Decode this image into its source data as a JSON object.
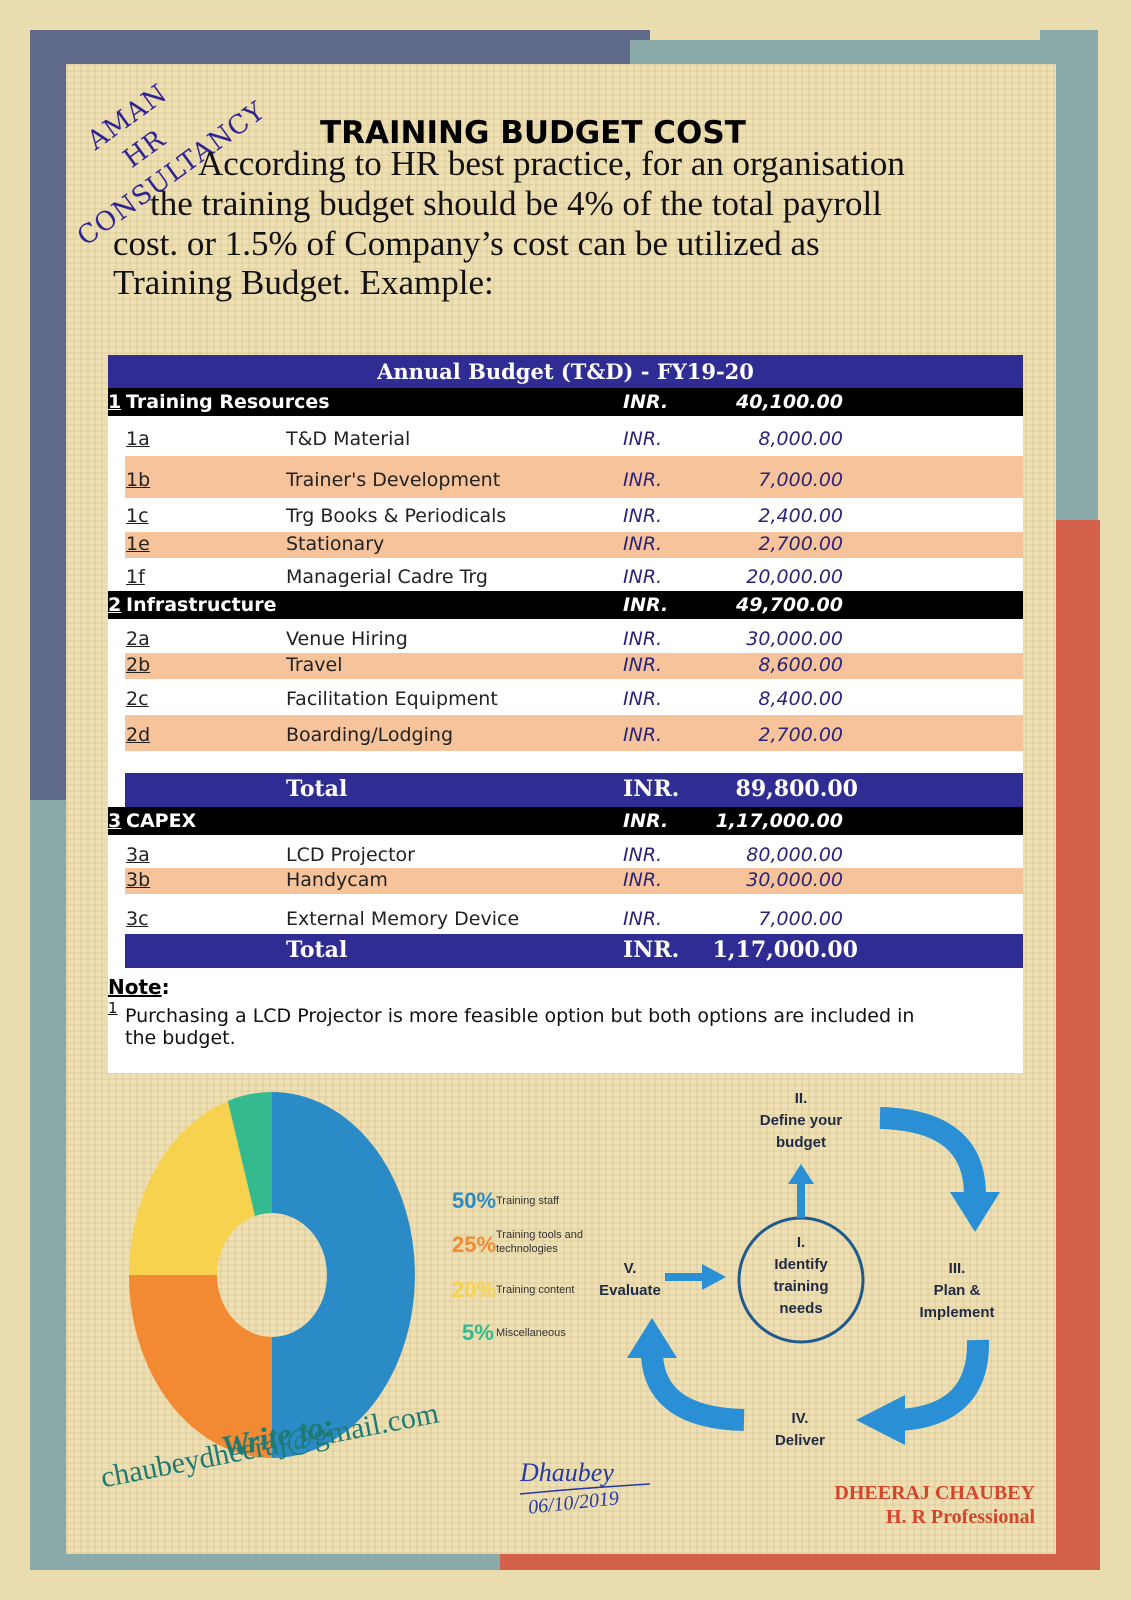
{
  "logo": {
    "line1": "AMAN",
    "line2": "HR",
    "line3": "CONSULTANCY"
  },
  "title": "TRAINING BUDGET COST",
  "intro": {
    "line1": "According to HR best practice, for an organisation",
    "line2": "the training budget should be 4% of the total payroll",
    "line3": "cost.  or 1.5% of Company’s cost can be utilized as",
    "line4": "Training Budget. Example:"
  },
  "table": {
    "heading": "Annual Budget (T&D) - FY19-20",
    "sections": [
      {
        "num": "1",
        "title": "Training Resources",
        "currency": "INR.",
        "amount": "40,100.00",
        "items": [
          {
            "code": "1a",
            "desc": "T&D Material",
            "currency": "INR.",
            "amount": "8,000.00"
          },
          {
            "code": "1b",
            "desc": "Trainer's Development",
            "currency": "INR.",
            "amount": "7,000.00"
          },
          {
            "code": "1c",
            "desc": "Trg Books & Periodicals",
            "currency": "INR.",
            "amount": "2,400.00"
          },
          {
            "code": "1e",
            "desc": "Stationary",
            "currency": "INR.",
            "amount": "2,700.00"
          },
          {
            "code": "1f",
            "desc": "Managerial Cadre Trg",
            "currency": "INR.",
            "amount": "20,000.00"
          }
        ]
      },
      {
        "num": "2",
        "title": "Infrastructure",
        "currency": "INR.",
        "amount": "49,700.00",
        "items": [
          {
            "code": "2a",
            "desc": "Venue Hiring",
            "currency": "INR.",
            "amount": "30,000.00"
          },
          {
            "code": "2b",
            "desc": "Travel",
            "currency": "INR.",
            "amount": "8,600.00"
          },
          {
            "code": "2c",
            "desc": "Facilitation Equipment",
            "currency": "INR.",
            "amount": "8,400.00"
          },
          {
            "code": "2d",
            "desc": "Boarding/Lodging",
            "currency": "INR.",
            "amount": "2,700.00"
          }
        ]
      },
      {
        "num": "3",
        "title": "CAPEX",
        "currency": "INR.",
        "amount": "1,17,000.00",
        "items": [
          {
            "code": "3a",
            "desc": "LCD Projector",
            "currency": "INR.",
            "amount": "80,000.00"
          },
          {
            "code": "3b",
            "desc": "Handycam",
            "currency": "INR.",
            "amount": "30,000.00"
          },
          {
            "code": "3c",
            "desc": "External Memory Device",
            "currency": "INR.",
            "amount": "7,000.00"
          }
        ]
      }
    ],
    "total1": {
      "label": "Total",
      "currency": "INR.",
      "amount": "89,800.00"
    },
    "total2": {
      "label": "Total",
      "currency": "INR.",
      "amount": "1,17,000.00"
    },
    "note_label": "Note",
    "note_colon": ":",
    "note_num": "1",
    "note_line1": "Purchasing a LCD Projector is more feasible option but both options are included in",
    "note_line2": "the budget."
  },
  "chart_data": {
    "type": "pie",
    "categories": [
      "Training staff",
      "Training tools and technologies",
      "Training content",
      "Miscellaneous"
    ],
    "values": [
      50,
      25,
      20,
      5
    ],
    "labels": [
      "50%",
      "25%",
      "20%",
      "5%"
    ],
    "colors": [
      "#2b8bc6",
      "#f28a33",
      "#f7d24e",
      "#35b98f"
    ],
    "donut": true
  },
  "cycle": {
    "step1": {
      "num": "I.",
      "l1": "Identify",
      "l2": "training",
      "l3": "needs"
    },
    "step2": {
      "num": "II.",
      "l1": "Define your",
      "l2": "budget"
    },
    "step3": {
      "num": "III.",
      "l1": "Plan &",
      "l2": "Implement"
    },
    "step4": {
      "num": "IV.",
      "l1": "Deliver"
    },
    "step5": {
      "num": "V.",
      "l1": "Evaluate"
    },
    "arrow_color": "#2b8fd6"
  },
  "contact": {
    "prompt": "Write to:",
    "email": "chaubeydheeraj@gmail.com"
  },
  "signature": {
    "name": "Dhaubey",
    "date": "06/10/2019"
  },
  "author": {
    "name": "DHEERAJ CHAUBEY",
    "role": "H. R Professional"
  },
  "colors": {
    "navy": "#2f2c93",
    "peach": "#f6c39b",
    "slate": "#5f6a8a",
    "teal": "#8aa9a9",
    "rust": "#d4614a"
  }
}
